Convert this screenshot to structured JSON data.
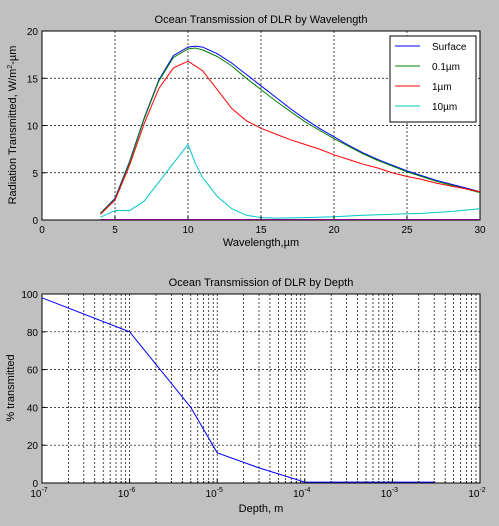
{
  "chart_data": [
    {
      "type": "line",
      "title": "Ocean Transmission of DLR by Wavelength",
      "xlabel": "Wavelength,µm",
      "ylabel_base": "Radiation Transmitted, W/m",
      "ylabel_sup": "2",
      "ylabel_tail": "-µm",
      "xlim": [
        0,
        30
      ],
      "ylim": [
        0,
        20
      ],
      "xticks": [
        0,
        5,
        10,
        15,
        20,
        25,
        30
      ],
      "yticks": [
        0,
        5,
        10,
        15,
        20
      ],
      "grid": true,
      "legend_position": "top-right",
      "series": [
        {
          "name": "Surface",
          "color": "#0000ff",
          "x": [
            4,
            5,
            6,
            7,
            8,
            9,
            10,
            10.5,
            11,
            12,
            13,
            14,
            15,
            16,
            17,
            18,
            19,
            20,
            21,
            22,
            23,
            24,
            25,
            26,
            27,
            28,
            29,
            30
          ],
          "y": [
            0.7,
            2.3,
            6.2,
            10.8,
            14.8,
            17.4,
            18.3,
            18.4,
            18.3,
            17.6,
            16.6,
            15.4,
            14.2,
            13.0,
            11.8,
            10.7,
            9.7,
            8.8,
            7.9,
            7.1,
            6.4,
            5.8,
            5.2,
            4.7,
            4.2,
            3.8,
            3.4,
            3.0
          ]
        },
        {
          "name": "0.1µm",
          "color": "#008000",
          "x": [
            4,
            5,
            6,
            7,
            8,
            9,
            10,
            10.5,
            11,
            12,
            13,
            14,
            15,
            16,
            17,
            18,
            19,
            20,
            21,
            22,
            23,
            24,
            25,
            26,
            27,
            28,
            29,
            30
          ],
          "y": [
            0.7,
            2.2,
            6.1,
            10.7,
            14.7,
            17.2,
            18.1,
            18.2,
            18.0,
            17.3,
            16.3,
            15.0,
            13.8,
            12.6,
            11.5,
            10.4,
            9.5,
            8.6,
            7.8,
            7.0,
            6.3,
            5.7,
            5.1,
            4.6,
            4.1,
            3.7,
            3.3,
            2.9
          ]
        },
        {
          "name": "1µm",
          "color": "#ff0000",
          "x": [
            4,
            5,
            6,
            7,
            8,
            9,
            10,
            11,
            12,
            13,
            14,
            15,
            16,
            17,
            18,
            19,
            20,
            21,
            22,
            23,
            24,
            25,
            26,
            27,
            28,
            29,
            30
          ],
          "y": [
            0.6,
            2.1,
            5.8,
            10.2,
            13.9,
            16.1,
            16.8,
            15.8,
            13.8,
            11.8,
            10.5,
            9.7,
            9.1,
            8.5,
            8.0,
            7.5,
            6.9,
            6.4,
            5.9,
            5.5,
            5.0,
            4.6,
            4.3,
            3.9,
            3.6,
            3.3,
            3.0
          ]
        },
        {
          "name": "10µm",
          "color": "#00c8c8",
          "x": [
            4,
            5,
            6,
            7,
            8,
            9,
            10,
            10.5,
            11,
            12,
            13,
            14,
            15,
            16,
            18,
            20,
            22,
            24,
            26,
            28,
            30
          ],
          "y": [
            0.3,
            1.0,
            1.0,
            2.0,
            4.0,
            6.0,
            8.0,
            6.0,
            4.5,
            2.5,
            1.2,
            0.5,
            0.25,
            0.2,
            0.25,
            0.35,
            0.5,
            0.6,
            0.7,
            0.9,
            1.2
          ]
        },
        {
          "name": "",
          "color": "#800080",
          "x": [
            4,
            30
          ],
          "y": [
            0.05,
            0.05
          ]
        }
      ]
    },
    {
      "type": "line",
      "title": "Ocean Transmission of DLR by Depth",
      "xlabel": "Depth, m",
      "ylabel": "% transmitted",
      "xscale": "log",
      "xlim": [
        1e-07,
        0.01
      ],
      "ylim": [
        0,
        100
      ],
      "xtick_exponents": [
        -7,
        -6,
        -5,
        -4,
        -3,
        -2
      ],
      "xtick_base": "10",
      "yticks": [
        0,
        20,
        40,
        60,
        80,
        100
      ],
      "grid": true,
      "series": [
        {
          "name": "",
          "color": "#0000ff",
          "x": [
            1e-07,
            1e-06,
            5e-06,
            1e-05,
            3e-05,
            0.0001,
            0.003
          ],
          "y": [
            98,
            80,
            40,
            16,
            8,
            0.5,
            0.5
          ]
        }
      ]
    }
  ]
}
